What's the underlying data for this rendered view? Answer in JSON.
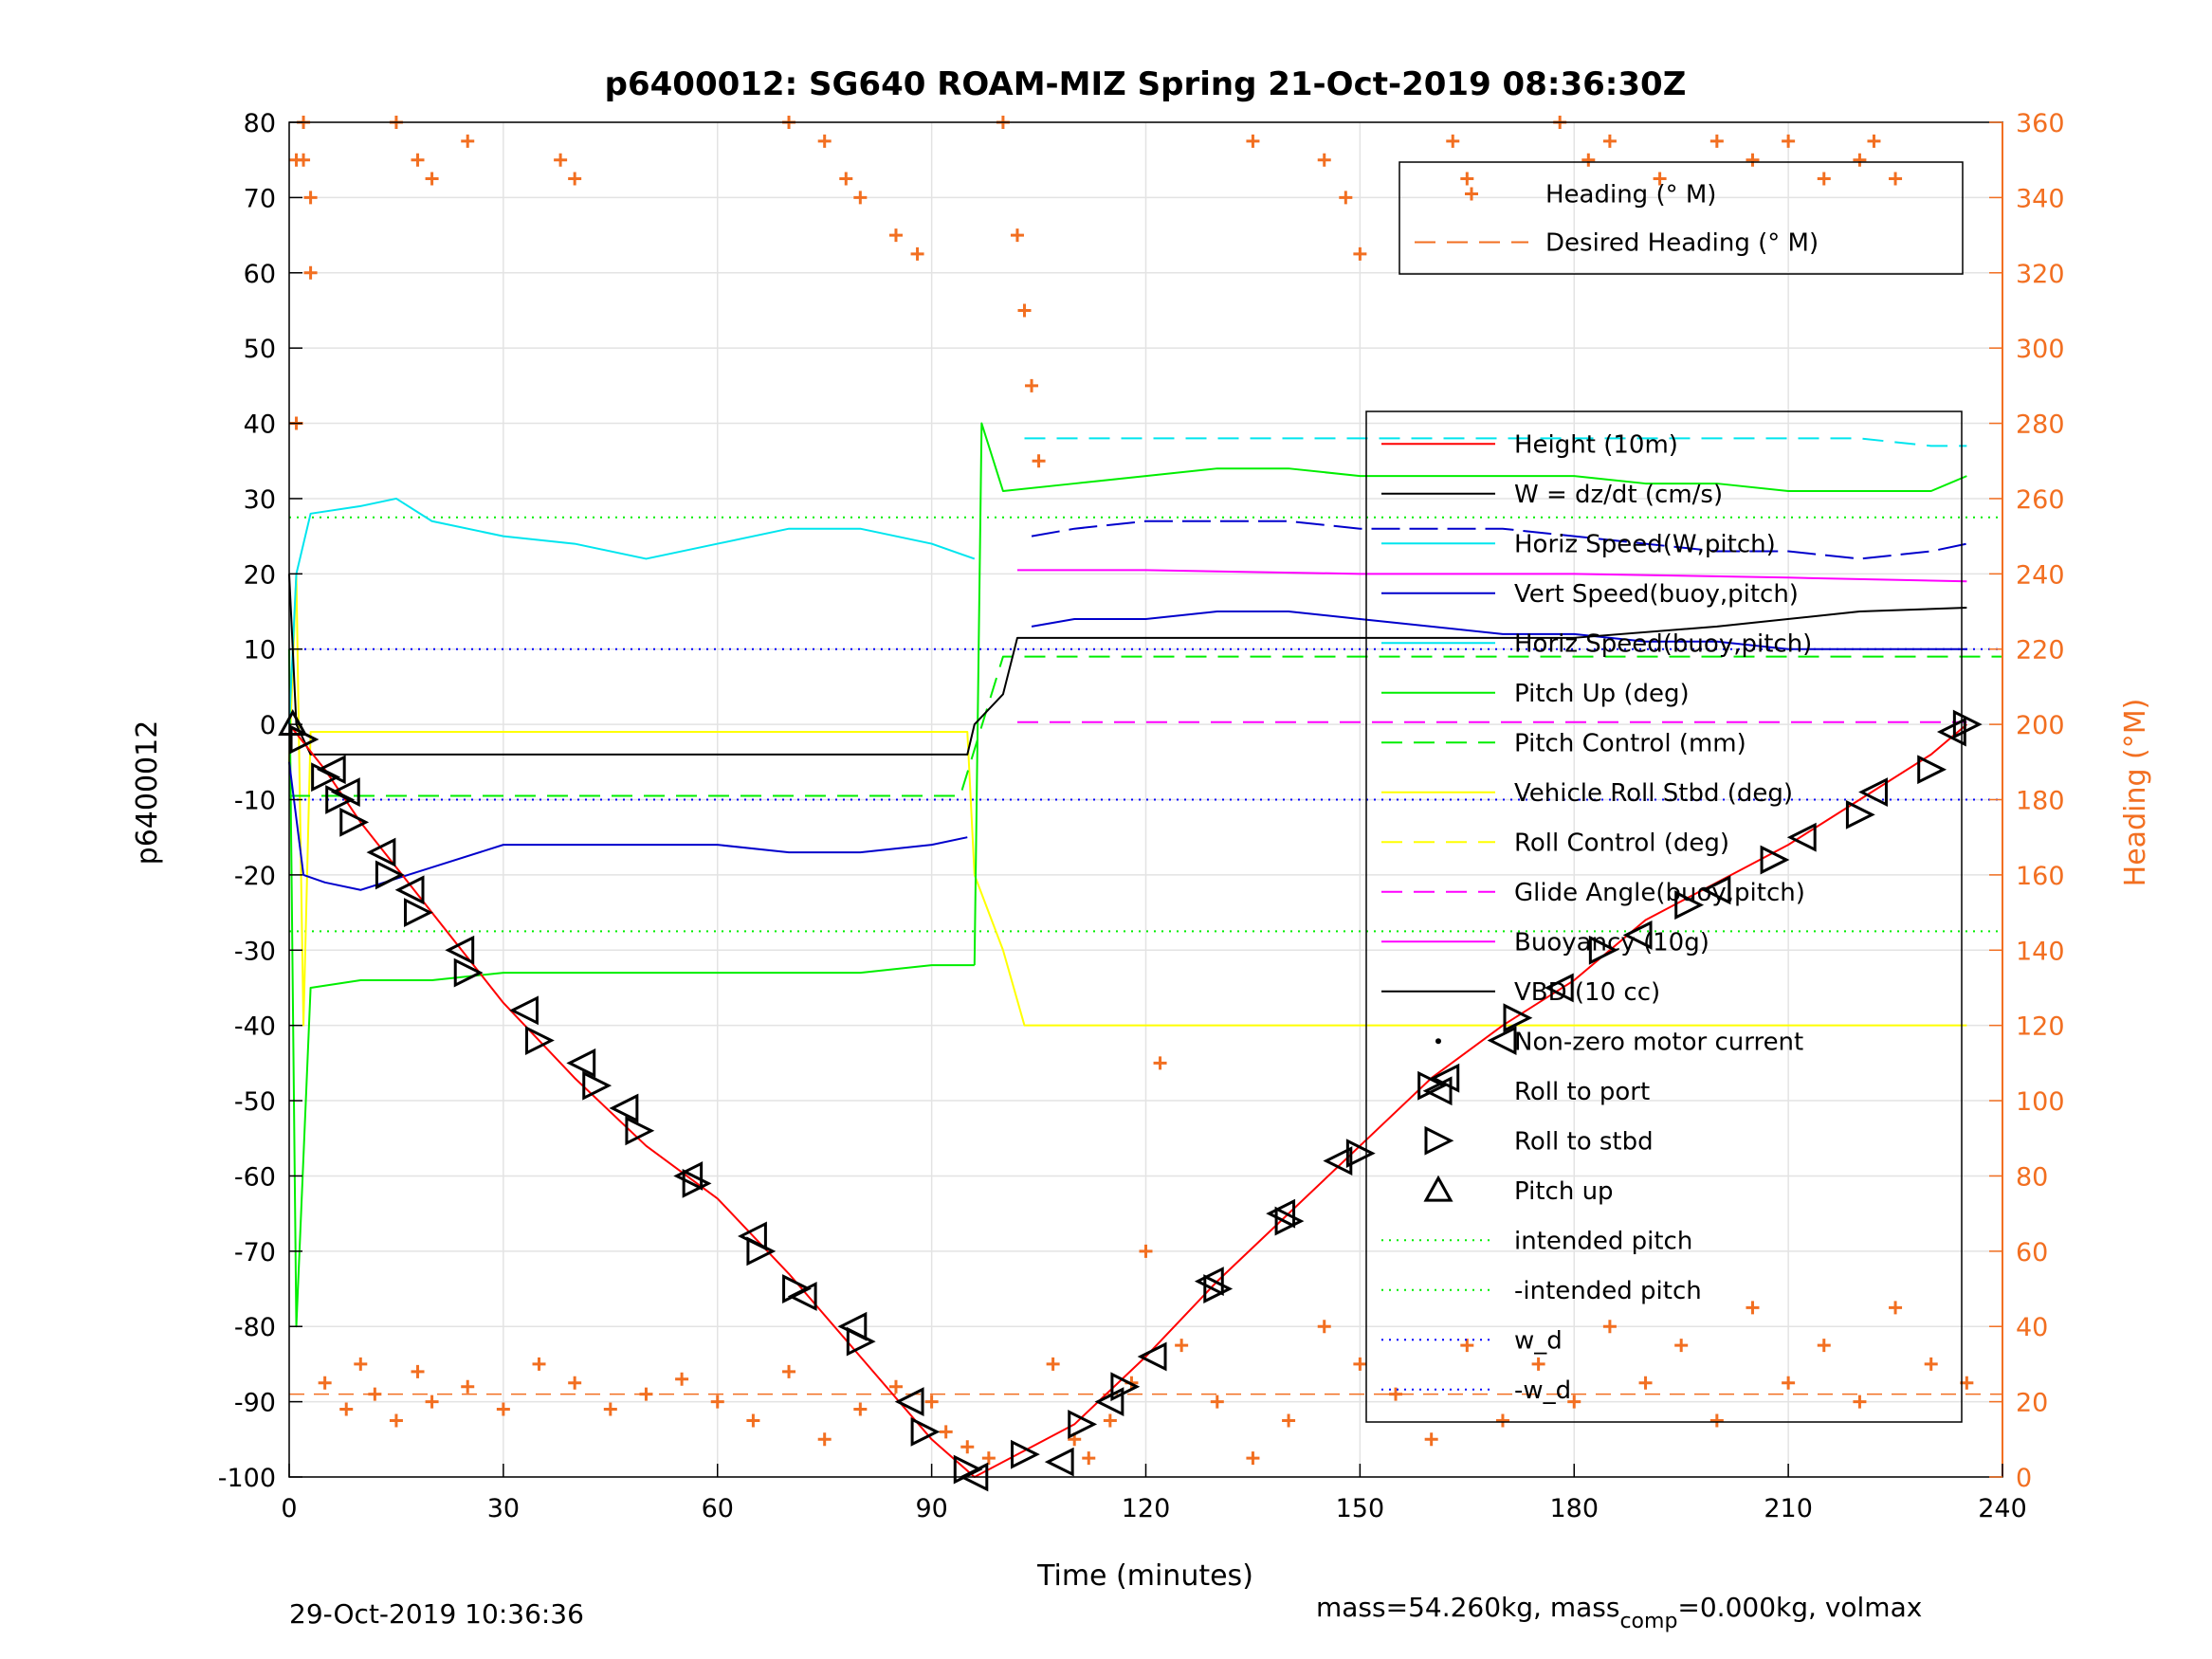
{
  "chart_data": {
    "type": "line",
    "title": "p6400012: SG640 ROAM-MIZ Spring 21-Oct-2019 08:36:30Z",
    "xlabel": "Time (minutes)",
    "ylabel_left": "p6400012",
    "ylabel_right": "Heading (°M)",
    "xlim": [
      0,
      240
    ],
    "ylim_left": [
      -100,
      80
    ],
    "ylim_right": [
      0,
      360
    ],
    "x_ticks": [
      0,
      30,
      60,
      90,
      120,
      150,
      180,
      210,
      240
    ],
    "y_ticks_left": [
      80,
      70,
      60,
      50,
      40,
      30,
      20,
      10,
      0,
      -10,
      -20,
      -30,
      -40,
      -50,
      -60,
      -70,
      -80,
      -90,
      -100
    ],
    "y_ticks_right": [
      360,
      340,
      320,
      300,
      280,
      260,
      240,
      220,
      200,
      180,
      160,
      140,
      120,
      100,
      80,
      60,
      40,
      20,
      0
    ],
    "grid": true,
    "colors": {
      "height": "#ff0000",
      "w": "#000000",
      "horiz_w": "#00e5ee",
      "vert_buoy": "#0000cc",
      "horiz_buoy": "#00e5ee",
      "pitch": "#00ee00",
      "roll": "#ffff00",
      "glide": "#ff00ff",
      "buoyancy": "#ff00ff",
      "vbd": "#000000",
      "heading": "#f26f21",
      "intended": "#00ee00",
      "wd": "#0000ff"
    },
    "reference_lines": {
      "intended_pitch": 27.5,
      "neg_intended_pitch": -27.5,
      "w_d": 10,
      "neg_w_d": -10,
      "desired_heading_deg": 22
    },
    "series": {
      "height_depth": {
        "x": [
          0,
          5,
          10,
          20,
          30,
          40,
          50,
          60,
          70,
          80,
          90,
          96,
          100,
          110,
          120,
          130,
          140,
          150,
          160,
          170,
          180,
          190,
          200,
          210,
          220,
          230,
          235
        ],
        "y": [
          0,
          -6,
          -13,
          -25,
          -37,
          -47,
          -56,
          -63,
          -73,
          -84,
          -95,
          -100,
          -98,
          -93,
          -84,
          -74,
          -65,
          -56,
          -47,
          -40,
          -34,
          -26,
          -21,
          -16,
          -10,
          -4,
          0
        ]
      },
      "horiz_speed_w_pitch": {
        "x": [
          0,
          1,
          3,
          10,
          15,
          20,
          30,
          40,
          50,
          60,
          70,
          80,
          90,
          96
        ],
        "y": [
          0,
          20,
          28,
          29,
          30,
          27,
          25,
          24,
          22,
          24,
          26,
          26,
          24,
          22
        ]
      },
      "horiz_speed_w_pitch_ascent": {
        "x": [
          103,
          110,
          120,
          130,
          140,
          150,
          160,
          170,
          180,
          190,
          200,
          210,
          220,
          230,
          235
        ],
        "y": [
          38,
          38,
          38,
          38,
          38,
          38,
          38,
          38,
          38,
          38,
          38,
          38,
          38,
          37,
          37
        ]
      },
      "vert_speed_buoy_pitch": {
        "x": [
          0,
          2,
          5,
          10,
          20,
          30,
          40,
          50,
          60,
          70,
          80,
          90,
          95
        ],
        "y": [
          -5,
          -20,
          -21,
          -22,
          -19,
          -16,
          -16,
          -16,
          -16,
          -17,
          -17,
          -16,
          -15
        ]
      },
      "vert_speed_buoy_pitch_ascent": {
        "x": [
          104,
          110,
          120,
          130,
          140,
          150,
          160,
          170,
          180,
          190,
          200,
          210,
          220,
          230,
          235
        ],
        "y": [
          25,
          26,
          27,
          27,
          27,
          26,
          26,
          26,
          25,
          24,
          23,
          23,
          22,
          23,
          24
        ]
      },
      "horiz_speed_buoy_pitch_ascent": {
        "x": [
          104,
          110,
          120,
          130,
          140,
          150,
          160,
          170,
          180,
          190,
          200,
          210,
          220,
          230,
          235
        ],
        "y": [
          13,
          14,
          14,
          15,
          15,
          14,
          13,
          12,
          12,
          11,
          11,
          10,
          10,
          10,
          10
        ]
      },
      "pitch_up": {
        "x": [
          0,
          1,
          3,
          10,
          20,
          30,
          40,
          50,
          60,
          70,
          80,
          90,
          96
        ],
        "y": [
          10,
          -80,
          -35,
          -34,
          -34,
          -33,
          -33,
          -33,
          -33,
          -33,
          -33,
          -32,
          -32
        ]
      },
      "pitch_up_ascent": {
        "x": [
          96,
          97,
          100,
          110,
          120,
          130,
          140,
          150,
          160,
          170,
          180,
          190,
          200,
          210,
          220,
          230,
          235
        ],
        "y": [
          -32,
          40,
          31,
          32,
          33,
          34,
          34,
          33,
          33,
          33,
          33,
          32,
          32,
          31,
          31,
          31,
          33
        ]
      },
      "pitch_control": {
        "x": [
          0,
          3,
          30,
          60,
          94,
          100,
          240
        ],
        "y": [
          -9.5,
          -9.5,
          -9.5,
          -9.5,
          -9.5,
          9,
          9
        ]
      },
      "vbd": {
        "x": [
          0,
          1,
          3,
          60,
          95,
          96,
          100,
          102,
          180,
          200,
          220,
          235
        ],
        "y": [
          20,
          0,
          -4,
          -4,
          -4,
          0,
          4,
          11.5,
          11.5,
          13,
          15,
          15.5
        ]
      },
      "buoyancy": {
        "x": [
          102,
          120,
          150,
          180,
          210,
          235
        ],
        "y": [
          20.5,
          20.5,
          20,
          20,
          19.5,
          19
        ]
      },
      "glide_angle": {
        "x": [
          102,
          235
        ],
        "y": [
          0.3,
          0.3
        ]
      },
      "roll": {
        "x": [
          0,
          1,
          2,
          3,
          95,
          96,
          100,
          103,
          150,
          235
        ],
        "y": [
          -5,
          20,
          -40,
          -1,
          -1,
          -20,
          -30,
          -40,
          -40,
          -40
        ]
      },
      "roll_to_stbd_markers": {
        "x": [
          2,
          5,
          7,
          9,
          14,
          18,
          25,
          35,
          43,
          49,
          57,
          66,
          71,
          80,
          89,
          95,
          103,
          111,
          117,
          130,
          140,
          150,
          160,
          172,
          184,
          196,
          208,
          220,
          230,
          235
        ],
        "y": [
          -2,
          -7,
          -10,
          -13,
          -20,
          -25,
          -33,
          -42,
          -48,
          -54,
          -61,
          -70,
          -75,
          -82,
          -94,
          -99,
          -97,
          -93,
          -88,
          -75,
          -66,
          -57,
          -48,
          -39,
          -30,
          -24,
          -18,
          -12,
          -6,
          0
        ]
      },
      "roll_to_port_markers": {
        "x": [
          6,
          8,
          13,
          17,
          24,
          33,
          41,
          47,
          56,
          65,
          72,
          79,
          87,
          96,
          108,
          115,
          121,
          129,
          139,
          147,
          162,
          170,
          178,
          189,
          200,
          212,
          222,
          233
        ],
        "y": [
          -6,
          -9,
          -17,
          -22,
          -30,
          -38,
          -45,
          -51,
          -60,
          -68,
          -76,
          -80,
          -90,
          -100,
          -98,
          -90,
          -84,
          -74,
          -65,
          -58,
          -47,
          -42,
          -35,
          -28,
          -22,
          -15,
          -9,
          -1
        ]
      },
      "pitch_up_markers": {
        "x": [
          0.5
        ],
        "y": [
          0
        ]
      },
      "heading_deg": {
        "x": [
          1,
          2,
          3,
          5,
          8,
          10,
          12,
          15,
          18,
          20,
          25,
          30,
          35,
          40,
          45,
          50,
          55,
          60,
          65,
          70,
          75,
          80,
          85,
          90,
          92,
          95,
          98,
          100,
          102,
          103,
          104,
          105,
          107,
          110,
          112,
          115,
          118,
          120,
          122,
          125,
          130,
          135,
          140,
          145,
          150,
          155,
          160,
          165,
          170,
          175,
          180,
          185,
          190,
          195,
          200,
          205,
          210,
          215,
          220,
          225,
          230,
          235
        ],
        "y": [
          280,
          350,
          320,
          25,
          18,
          30,
          22,
          15,
          28,
          20,
          24,
          18,
          30,
          25,
          18,
          22,
          26,
          20,
          15,
          28,
          10,
          18,
          24,
          20,
          12,
          8,
          5,
          360,
          330,
          310,
          290,
          270,
          30,
          10,
          5,
          15,
          25,
          60,
          110,
          35,
          20,
          5,
          15,
          40,
          30,
          22,
          10,
          35,
          15,
          30,
          20,
          40,
          25,
          35,
          15,
          45,
          25,
          35,
          20,
          45,
          30,
          25
        ]
      },
      "heading_upper_cluster": {
        "x": [
          1,
          2,
          3,
          15,
          18,
          20,
          25,
          38,
          40,
          70,
          75,
          78,
          80,
          85,
          88,
          135,
          145,
          148,
          150,
          163,
          165,
          178,
          182,
          185,
          192,
          200,
          205,
          210,
          215,
          220,
          222,
          225
        ],
        "y": [
          350,
          360,
          340,
          360,
          350,
          345,
          355,
          350,
          345,
          360,
          355,
          345,
          340,
          330,
          325,
          355,
          350,
          340,
          325,
          355,
          345,
          360,
          350,
          355,
          345,
          355,
          350,
          355,
          345,
          350,
          355,
          345
        ]
      }
    },
    "legend_upper": [
      {
        "label": "Heading (° M)",
        "style": "plus-marker",
        "color": "#f26f21"
      },
      {
        "label": "Desired Heading (° M)",
        "style": "dash",
        "color": "#f26f21"
      }
    ],
    "legend_main": [
      {
        "label": "Height (10m)",
        "style": "solid",
        "color": "#ff0000"
      },
      {
        "label": "W = dz/dt (cm/s)",
        "style": "solid",
        "color": "#000000"
      },
      {
        "label": "Horiz Speed(W,pitch)",
        "style": "solid",
        "color": "#00e5ee"
      },
      {
        "label": "Vert Speed(buoy,pitch)",
        "style": "solid",
        "color": "#0000cc"
      },
      {
        "label": "Horiz Speed(buoy,pitch)",
        "style": "solid",
        "color": "#00e5ee"
      },
      {
        "label": "Pitch Up (deg)",
        "style": "solid",
        "color": "#00ee00"
      },
      {
        "label": "Pitch Control (mm)",
        "style": "dash",
        "color": "#00ee00"
      },
      {
        "label": "Vehicle Roll Stbd (deg)",
        "style": "solid",
        "color": "#ffff00"
      },
      {
        "label": "Roll Control (deg)",
        "style": "dash",
        "color": "#ffff00"
      },
      {
        "label": "Glide Angle(buoy,pitch)",
        "style": "dash",
        "color": "#ff00ff"
      },
      {
        "label": "Buoyancy (10g)",
        "style": "solid",
        "color": "#ff00ff"
      },
      {
        "label": "VBD (10 cc)",
        "style": "solid",
        "color": "#000000"
      },
      {
        "label": "Non-zero motor current",
        "style": "dot",
        "color": "#000000"
      },
      {
        "label": "Roll to port",
        "style": "tri-left",
        "color": "#000000"
      },
      {
        "label": "Roll to stbd",
        "style": "tri-right",
        "color": "#000000"
      },
      {
        "label": "Pitch up",
        "style": "tri-up",
        "color": "#000000"
      },
      {
        "label": "intended pitch",
        "style": "dotted",
        "color": "#00ee00"
      },
      {
        "label": "-intended pitch",
        "style": "dotted",
        "color": "#00ee00"
      },
      {
        "label": "w_d",
        "style": "dotted",
        "color": "#0000ff"
      },
      {
        "label": "-w_d",
        "style": "dotted",
        "color": "#0000ff"
      }
    ]
  },
  "footer": {
    "date": "29-Oct-2019 10:36:36",
    "mass_text_1": "mass=54.260kg, mass",
    "mass_sub": "comp",
    "mass_text_2": "=0.000kg, volmax"
  }
}
